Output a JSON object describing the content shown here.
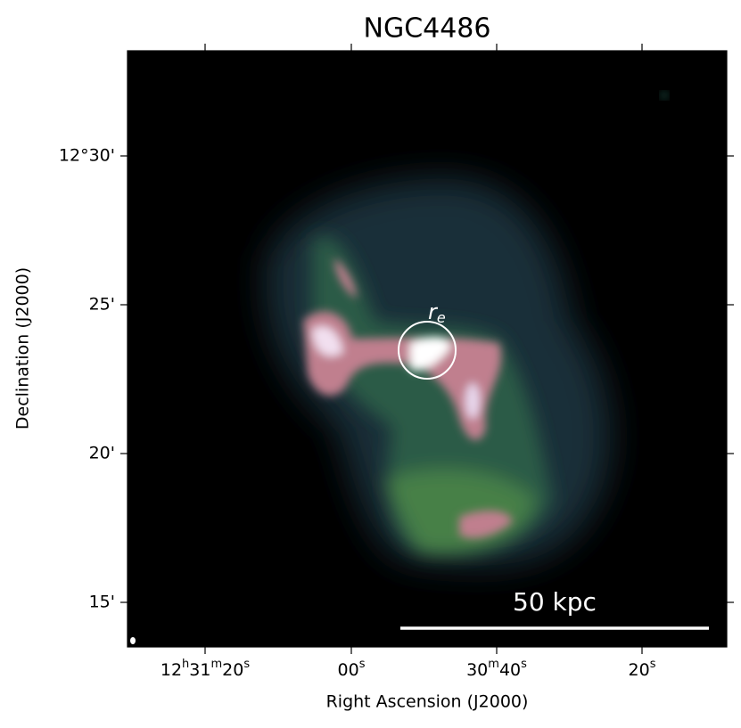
{
  "title": "NGC4486",
  "x_axis_label": "Right Ascension (J2000)",
  "y_axis_label": "Declination (J2000)",
  "x_tick_labels": [
    "12h31m20s",
    "00s",
    "30m40s",
    "20s"
  ],
  "y_tick_labels": [
    "12°30'",
    "25'",
    "20'",
    "15'"
  ],
  "scale_bar_label": "50 kpc",
  "circle_label": {
    "base": "r",
    "subscript": "e"
  }
}
